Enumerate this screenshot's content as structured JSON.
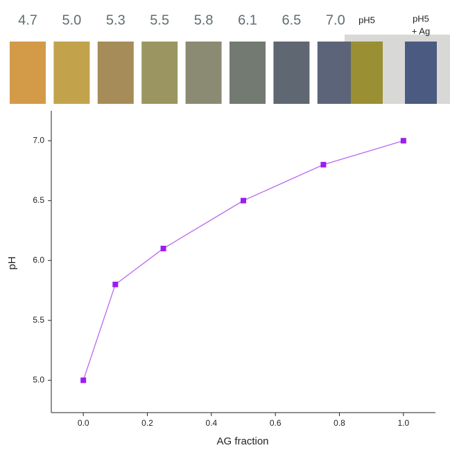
{
  "color_strip": {
    "swatches": [
      {
        "label": "4.7",
        "color": "#d39a48"
      },
      {
        "label": "5.0",
        "color": "#c3a24c"
      },
      {
        "label": "5.3",
        "color": "#a68c58"
      },
      {
        "label": "5.5",
        "color": "#9b9562"
      },
      {
        "label": "5.8",
        "color": "#8b8a73"
      },
      {
        "label": "6.1",
        "color": "#737a72"
      },
      {
        "label": "6.5",
        "color": "#5f6772"
      },
      {
        "label": "7.0",
        "color": "#5c6479"
      }
    ],
    "samples": [
      {
        "label": [
          "pH5"
        ],
        "color": "#9a8f32"
      },
      {
        "label": [
          "pH5",
          "+ Ag"
        ],
        "color": "#4b5a80"
      }
    ]
  },
  "chart_data": {
    "type": "line",
    "x_label": "AG fraction",
    "y_label": "pH",
    "x": [
      0,
      0.1,
      0.25,
      0.5,
      0.75,
      1.0
    ],
    "series": [
      {
        "name": "pH",
        "color": "#9b1ef0",
        "line_color": "#b868f2",
        "values": [
          5.0,
          5.8,
          6.1,
          6.5,
          6.8,
          7.0
        ]
      }
    ],
    "xlim": [
      -0.1,
      1.1
    ],
    "xticks": [
      {
        "value": 0,
        "label": "0.0"
      },
      {
        "value": 0.2,
        "label": "0.2"
      },
      {
        "value": 0.4,
        "label": "0.4"
      },
      {
        "value": 0.6,
        "label": "0.6"
      },
      {
        "value": 0.8,
        "label": "0.8"
      },
      {
        "value": 1.0,
        "label": "1.0"
      }
    ],
    "ylim": [
      4.73,
      7.25
    ],
    "yticks": [
      {
        "value": 5.0,
        "label": "5.0"
      },
      {
        "value": 5.5,
        "label": "5.5"
      },
      {
        "value": 6.0,
        "label": "6.0"
      },
      {
        "value": 6.5,
        "label": "6.5"
      },
      {
        "value": 7.0,
        "label": "7.0"
      }
    ]
  }
}
